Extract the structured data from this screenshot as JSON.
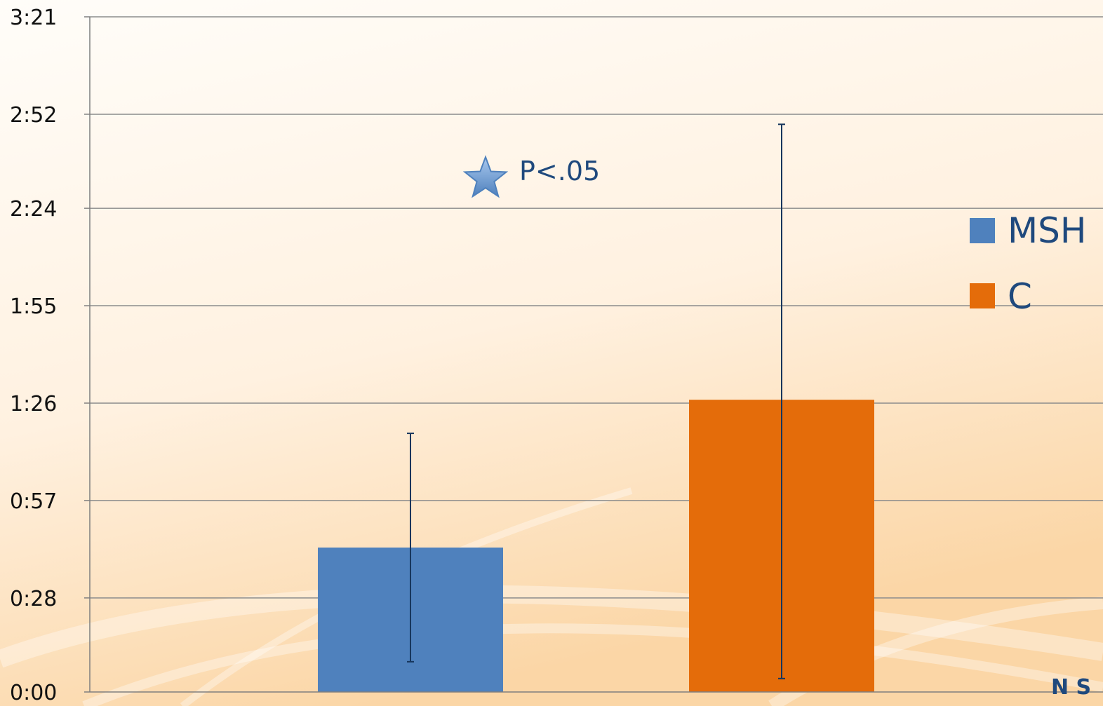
{
  "chart_data": {
    "type": "bar",
    "title": "",
    "xlabel": "",
    "ylabel": "",
    "y_unit": "m:ss",
    "ylim": [
      0,
      201
    ],
    "yticks": [
      0,
      28,
      57,
      86,
      115,
      144,
      172,
      201
    ],
    "ytick_labels": [
      "0:00",
      "0:28",
      "0:57",
      "1:26",
      "1:55",
      "2:24",
      "2:52",
      "3:21"
    ],
    "grid": true,
    "legend_position": "right",
    "series": [
      {
        "name": "MSH",
        "color": "#4F81BD",
        "value": 43,
        "error_low": 9,
        "error_high": 77
      },
      {
        "name": "C",
        "color": "#E46C0A",
        "value": 87,
        "error_low": 4,
        "error_high": 169
      }
    ],
    "annotation": {
      "text": "P<.05",
      "icon": "star-icon",
      "color": "#1F497D"
    }
  },
  "colors": {
    "background_light": "#FFF9F2",
    "background_warm": "#FBDDB5",
    "gridline": "#8C8C8C",
    "axis": "#7F7F7F",
    "error_bar": "#17365D",
    "legend_text": "#1F497D"
  },
  "logo": {
    "text": "N S"
  }
}
